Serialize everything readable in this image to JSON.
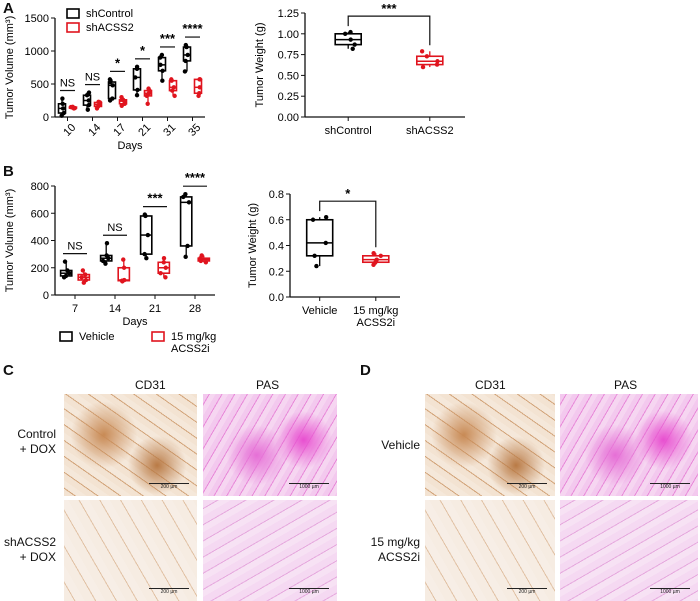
{
  "panels": {
    "a": "A",
    "b": "B",
    "c": "C",
    "d": "D"
  },
  "chart_data": [
    {
      "type": "box",
      "panel": "A-left",
      "ylabel": "Tumor Volume (mm3)",
      "xlabel": "Days",
      "ylim": [
        0,
        1500
      ],
      "yticks": [
        0,
        500,
        1000,
        1500
      ],
      "categories": [
        "10",
        "14",
        "17",
        "21",
        "31",
        "35"
      ],
      "series": [
        {
          "name": "shControl",
          "color": "#000000",
          "boxes": [
            [
              20,
              60,
              130,
              200,
              280
            ],
            [
              110,
              180,
              250,
              330,
              370
            ],
            [
              250,
              280,
              480,
              530,
              570
            ],
            [
              330,
              410,
              600,
              730,
              760
            ],
            [
              550,
              700,
              790,
              900,
              940
            ],
            [
              690,
              850,
              940,
              1060,
              1090
            ]
          ]
        },
        {
          "name": "shACSS2",
          "color": "#e0141e",
          "boxes": [
            [
              130,
              135,
              145,
              150,
              155
            ],
            [
              130,
              160,
              190,
              220,
              230
            ],
            [
              170,
              200,
              240,
              260,
              300
            ],
            [
              200,
              320,
              360,
              400,
              430
            ],
            [
              320,
              400,
              450,
              550,
              570
            ],
            [
              320,
              360,
              450,
              570,
              570
            ]
          ]
        }
      ],
      "significance": [
        "NS",
        "NS",
        "*",
        "*",
        "***",
        "****"
      ]
    },
    {
      "type": "box",
      "panel": "A-right",
      "ylabel": "Tumor Weight (g)",
      "ylim": [
        0,
        1.25
      ],
      "yticks": [
        "0.00",
        "0.25",
        "0.50",
        "0.75",
        "1.00",
        "1.25"
      ],
      "categories": [
        "shControl",
        "shACSS2"
      ],
      "colors": [
        "#000000",
        "#e0141e"
      ],
      "boxes": [
        [
          0.82,
          0.87,
          0.93,
          1.0,
          1.02
        ],
        [
          0.6,
          0.63,
          0.67,
          0.73,
          0.79
        ]
      ],
      "significance": "***"
    },
    {
      "type": "box",
      "panel": "B-left",
      "ylabel": "Tumor Volume (mm3)",
      "xlabel": "Days",
      "ylim": [
        0,
        800
      ],
      "yticks": [
        0,
        200,
        400,
        600,
        800
      ],
      "categories": [
        "7",
        "14",
        "21",
        "28"
      ],
      "series": [
        {
          "name": "Vehicle",
          "color": "#000000",
          "boxes": [
            [
              130,
              140,
              160,
              180,
              245
            ],
            [
              230,
              250,
              270,
              290,
              380
            ],
            [
              270,
              300,
              440,
              580,
              590
            ],
            [
              280,
              360,
              680,
              720,
              740
            ]
          ]
        },
        {
          "name": "15 mg/kg ACSS2i",
          "color": "#e0141e",
          "boxes": [
            [
              90,
              110,
              130,
              150,
              180
            ],
            [
              100,
              105,
              110,
              200,
              260
            ],
            [
              130,
              160,
              200,
              240,
              270
            ],
            [
              240,
              250,
              260,
              270,
              290
            ]
          ]
        }
      ],
      "significance": [
        "NS",
        "NS",
        "***",
        "****"
      ]
    },
    {
      "type": "box",
      "panel": "B-right",
      "ylabel": "Tumor Weight (g)",
      "ylim": [
        0,
        0.8
      ],
      "yticks": [
        "0.0",
        "0.2",
        "0.4",
        "0.6",
        "0.8"
      ],
      "categories": [
        "Vehicle",
        "15 mg/kg ACSS2i"
      ],
      "colors": [
        "#000000",
        "#e0141e"
      ],
      "boxes": [
        [
          0.24,
          0.32,
          0.42,
          0.6,
          0.62
        ],
        [
          0.25,
          0.27,
          0.29,
          0.32,
          0.34
        ]
      ],
      "significance": "*"
    }
  ],
  "micro": {
    "c": {
      "cols": [
        "CD31",
        "PAS"
      ],
      "rows": [
        "Control\n+ DOX",
        "shACSS2\n+ DOX"
      ],
      "scale": [
        "200 µm",
        "1000 µm"
      ]
    },
    "d": {
      "cols": [
        "CD31",
        "PAS"
      ],
      "rows": [
        "Vehicle",
        "15 mg/kg\nACSS2i"
      ],
      "scale": [
        "200 µm",
        "1000 µm"
      ]
    }
  }
}
